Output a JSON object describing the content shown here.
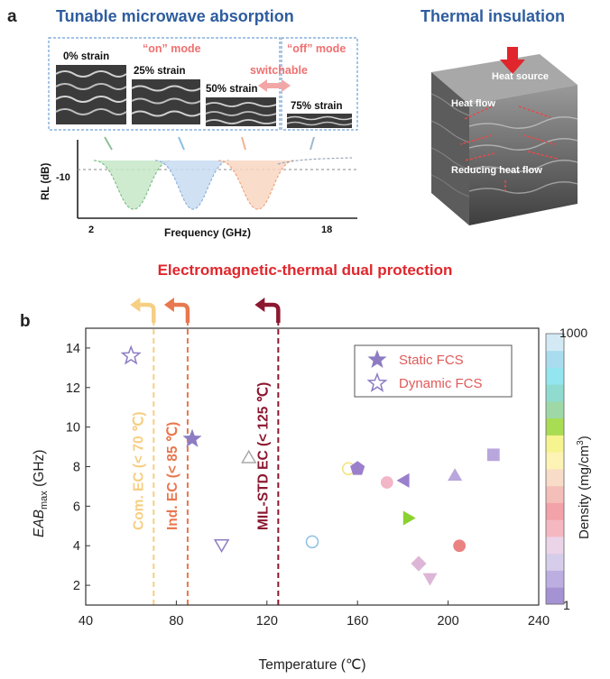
{
  "panel_a": {
    "label": "a",
    "title_left": "Tunable microwave absorption",
    "title_right": "Thermal insulation",
    "on_mode": "“on” mode",
    "off_mode": "“off” mode",
    "switchable": "switchable",
    "strains": [
      "0% strain",
      "25% strain",
      "50% strain",
      "75% strain"
    ],
    "rl_ylabel": "RL (dB)",
    "rl_tick": "-10",
    "rl_xlabel": "Frequency (GHz)",
    "rl_xmin": "2",
    "rl_xmax": "18",
    "heat_source": "Heat source",
    "heat_flow": "Heat flow",
    "reducing": "Reducing heat flow",
    "banner": "Electromagnetic-thermal dual protection",
    "colors": {
      "title": "#2e5d9e",
      "red": "#e0262c",
      "pink": "#f07070"
    }
  },
  "panel_b": {
    "label": "b",
    "xlabel": "Temperature (℃)",
    "ylabel_main": "EAB",
    "ylabel_sub": "max",
    "ylabel_unit": " (GHz)",
    "colorbar_label": "Density (mg/cm",
    "colorbar_sup": "3",
    "colorbar_label_end": ")",
    "colorbar_top": "1000",
    "colorbar_bottom": "1",
    "legend": {
      "static": "Static FCS",
      "dynamic": "Dynamic FCS"
    },
    "thresholds": [
      {
        "label": "Com. EC (< 70 ℃)",
        "temp": 70,
        "color": "#f6cf82"
      },
      {
        "label": "Ind. EC (< 85 ℃)",
        "temp": 85,
        "color": "#e8784f"
      },
      {
        "label": "MIL-STD EC (< 125 ℃)",
        "temp": 125,
        "color": "#8c1830"
      }
    ]
  },
  "chart_data": {
    "type": "scatter",
    "xlabel": "Temperature (℃)",
    "ylabel": "EABmax (GHz)",
    "xlim": [
      40,
      240
    ],
    "ylim": [
      1,
      15
    ],
    "xticks": [
      40,
      80,
      120,
      160,
      200,
      240
    ],
    "yticks": [
      2,
      4,
      6,
      8,
      10,
      12,
      14
    ],
    "grid": false,
    "legend_position": "top-right",
    "points": [
      {
        "x": 60,
        "y": 13.6,
        "shape": "star",
        "filled": false,
        "color": "#8e7cc3"
      },
      {
        "x": 87,
        "y": 9.4,
        "shape": "star",
        "filled": true,
        "color": "#8e7cc3"
      },
      {
        "x": 112,
        "y": 8.4,
        "shape": "triangle-up",
        "filled": false,
        "color": "#aaaaaa"
      },
      {
        "x": 100,
        "y": 4.1,
        "shape": "triangle-down",
        "filled": false,
        "color": "#8e7cc3"
      },
      {
        "x": 140,
        "y": 4.2,
        "shape": "circle",
        "filled": false,
        "color": "#8dbfe2"
      },
      {
        "x": 156,
        "y": 7.9,
        "shape": "circle",
        "filled": false,
        "color": "#f2e27a"
      },
      {
        "x": 160,
        "y": 7.9,
        "shape": "pentagon",
        "filled": true,
        "color": "#9a7fcc"
      },
      {
        "x": 173,
        "y": 7.2,
        "shape": "circle",
        "filled": true,
        "color": "#f2b6c6"
      },
      {
        "x": 181,
        "y": 7.3,
        "shape": "triangle-left",
        "filled": true,
        "color": "#9a7fcc"
      },
      {
        "x": 182,
        "y": 5.4,
        "shape": "triangle-right",
        "filled": true,
        "color": "#8bd230"
      },
      {
        "x": 203,
        "y": 7.5,
        "shape": "triangle-up",
        "filled": true,
        "color": "#b9a6dc"
      },
      {
        "x": 220,
        "y": 8.6,
        "shape": "square",
        "filled": true,
        "color": "#b9a6dc"
      },
      {
        "x": 187,
        "y": 3.1,
        "shape": "diamond",
        "filled": true,
        "color": "#ddb6d7"
      },
      {
        "x": 192,
        "y": 2.4,
        "shape": "triangle-down",
        "filled": true,
        "color": "#ddb6d7"
      },
      {
        "x": 205,
        "y": 4.0,
        "shape": "circle",
        "filled": true,
        "color": "#ea8282"
      }
    ],
    "colorbar": {
      "scale": "log",
      "range": [
        1,
        1000
      ],
      "colors": [
        "#a592d2",
        "#bcaee0",
        "#d6cdeb",
        "#ebd3e8",
        "#f5b8c0",
        "#f2a2a8",
        "#f4bfb8",
        "#f9dcc7",
        "#fdf3b4",
        "#f6f48e",
        "#a8dc52",
        "#9ed8a6",
        "#8fdbd0",
        "#93e5f0",
        "#a9dcee",
        "#d3eaf4"
      ]
    }
  }
}
